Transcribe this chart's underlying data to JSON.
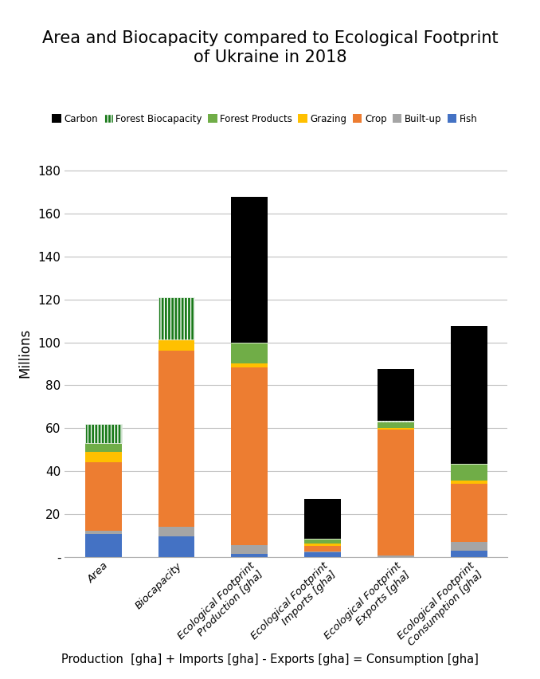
{
  "categories": [
    "Area",
    "Biocapacity",
    "Ecological Footprint\nProduction [gha]",
    "Ecological Footprint\nImports [gha]",
    "Ecological Footprint\nExports [gha]",
    "Ecological Footprint\nConsumption [gha]"
  ],
  "series": {
    "Fish": [
      10.5,
      9.5,
      1.5,
      2.0,
      0.0,
      3.0
    ],
    "Built-up": [
      1.5,
      4.5,
      4.0,
      0.5,
      0.5,
      4.0
    ],
    "Crop": [
      32.0,
      82.0,
      83.0,
      2.5,
      59.0,
      27.0
    ],
    "Grazing": [
      5.0,
      5.5,
      1.5,
      1.0,
      0.5,
      1.5
    ],
    "Forest Products": [
      4.0,
      0.0,
      10.0,
      2.5,
      3.0,
      8.0
    ],
    "Forest Biocapacity": [
      9.0,
      19.5,
      0.0,
      0.0,
      0.5,
      0.0
    ],
    "Carbon": [
      0.0,
      0.0,
      68.0,
      18.5,
      24.0,
      64.0
    ]
  },
  "colors": {
    "Carbon": "#000000",
    "Forest Biocapacity": "#1a7a1a",
    "Forest Products": "#70ad47",
    "Grazing": "#ffc000",
    "Crop": "#ed7d31",
    "Built-up": "#a5a5a5",
    "Fish": "#4472c4"
  },
  "order": [
    "Fish",
    "Built-up",
    "Crop",
    "Grazing",
    "Forest Products",
    "Forest Biocapacity",
    "Carbon"
  ],
  "title": "Area and Biocapacity compared to Ecological Footprint\nof Ukraine in 2018",
  "ylabel": "Millions",
  "xlabel_bottom": "Production  [gha] + Imports [gha] - Exports [gha] = Consumption [gha]",
  "ylim": [
    0,
    190
  ],
  "yticks": [
    0,
    20,
    40,
    60,
    80,
    100,
    120,
    140,
    160,
    180
  ],
  "ytick_labels": [
    "-",
    "20",
    "40",
    "60",
    "80",
    "100",
    "120",
    "140",
    "160",
    "180"
  ],
  "bar_width": 0.5,
  "forest_biocapacity_hatch": "||||",
  "legend_order": [
    "Carbon",
    "Forest Biocapacity",
    "Forest Products",
    "Grazing",
    "Crop",
    "Built-up",
    "Fish"
  ]
}
